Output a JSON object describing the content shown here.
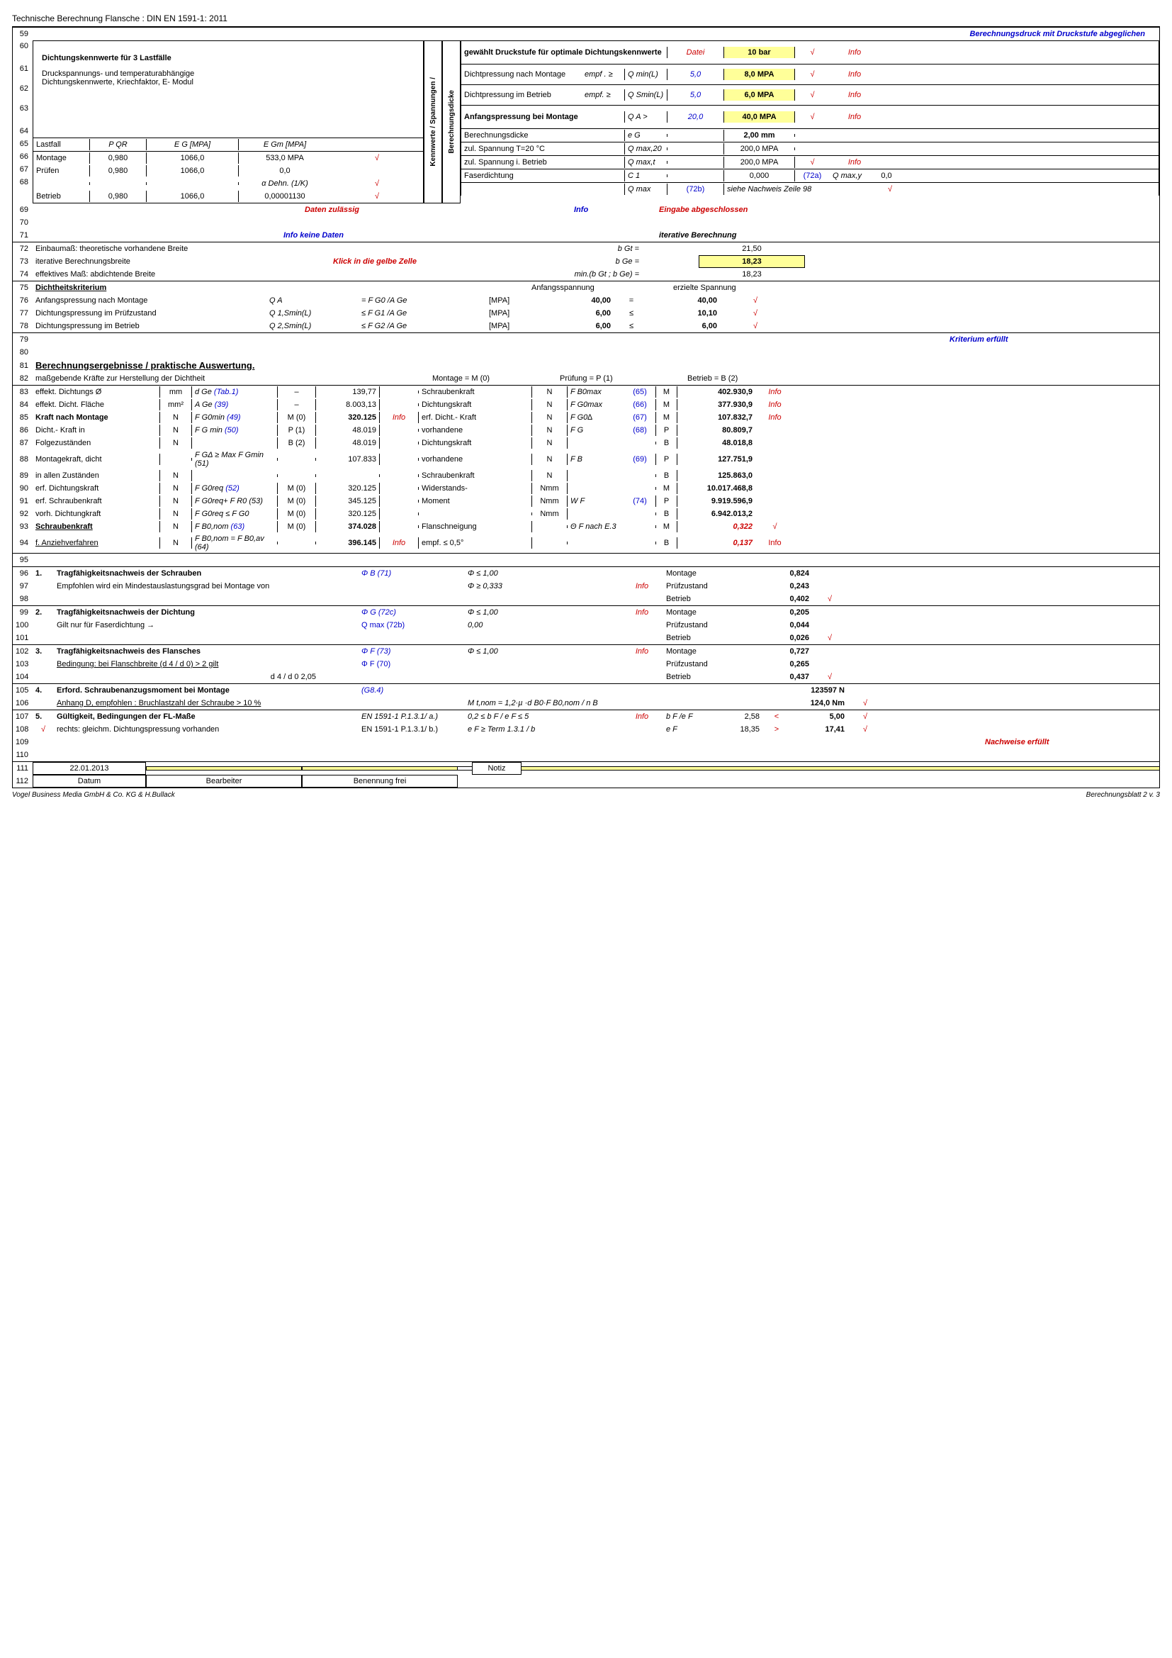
{
  "header": "Technische Berechnung Flansche : DIN EN 1591-1: 2011",
  "r59": "Berechnungsdruck mit Druckstufe abgeglichen",
  "r60": {
    "left": "gewählt Druckstufe für optimale Dichtungskennwerte",
    "datei": "Datei",
    "val": "10 bar",
    "info": "Info"
  },
  "r61": {
    "title": "Dichtungskennwerte für  3 Lastfälle",
    "a": "Dichtpressung nach Montage",
    "b": "empf . ≥",
    "c": "Q min(L)",
    "d": "5,0",
    "e": "8,0 MPA",
    "info": "Info"
  },
  "r62": {
    "sub": "Druckspannungs- und temperaturabhängige",
    "a": "Dichtpressung im Betrieb",
    "b": "empf. ≥",
    "c": "Q Smin(L)",
    "d": "5,0",
    "e": "6,0 MPA",
    "info": "Info"
  },
  "r63": {
    "sub": "Dichtungskennwerte, Kriechfaktor, E- Modul",
    "a": "Anfangspressung bei Montage",
    "c": "Q A  >",
    "d": "20,0",
    "e": "40,0 MPA",
    "info": "Info"
  },
  "vert1": "Kennwerte / Spannungen /",
  "vert2": "Berechnungsdicke",
  "r64": {
    "h1": "Lastfall",
    "h2": "P QR",
    "h3": "E G   [MPA]",
    "h4": "E Gm  [MPA]",
    "a": "Berechnungsdicke",
    "c": "e G",
    "e": "2,00 mm"
  },
  "r65": {
    "c1": "Montage",
    "c2": "0,980",
    "c3": "1066,0",
    "c4": "533,0 MPA",
    "ck": "√",
    "a": "zul. Spannung  T=20 °C",
    "c": "Q max,20",
    "e": "200,0 MPA"
  },
  "r66": {
    "c1": "Prüfen",
    "c2": "0,980",
    "c3": "1066,0",
    "c4": "0,0",
    "a": "zul. Spannung i. Betrieb",
    "c": "Q max,t",
    "e": "200,0 MPA",
    "info": "Info"
  },
  "r67": {
    "c4": "α Dehn.  (1/K)",
    "ck": "√",
    "a": "Faserdichtung",
    "c": "C 1",
    "e": "0,000",
    "f": "(72a)",
    "g": "Q max,y",
    "h": "0,0"
  },
  "r68": {
    "c1": "Betrieb",
    "c2": "0,980",
    "c3": "1066,0",
    "c4": "0,00001130",
    "ck": "√",
    "c": "Q max",
    "d": "(72b)",
    "e": "siehe Nachweis Zeile 98"
  },
  "r69": {
    "a": "Daten zulässig",
    "b": "Info",
    "c": "Eingabe abgeschlossen"
  },
  "r71": {
    "a": "Info keine Daten",
    "b": "iterative Berechnung"
  },
  "r72": {
    "a": "Einbaumaß:  theoretische vorhandene Breite",
    "b": "b Gt =",
    "c": "21,50"
  },
  "r73": {
    "a": "iterative Berechnungsbreite",
    "b": "Klick in die gelbe Zelle",
    "c": "b Ge =",
    "d": "18,23"
  },
  "r74": {
    "a": "effektives Maß: abdichtende Breite",
    "b": "min.(b Gt ; b Ge) =",
    "c": "18,23"
  },
  "r75": {
    "a": "Dichtheitskriterium",
    "b": "Anfangsspannung",
    "c": "erzielte Spannung"
  },
  "r76": {
    "a": "Anfangspressung nach Montage",
    "b": "Q A",
    "c": "=  F G0 /A Ge",
    "d": "[MPA]",
    "e": "40,00",
    "f": "=",
    "g": "40,00"
  },
  "r77": {
    "a": "Dichtungspressung im Prüfzustand",
    "b": "Q 1,Smin(L)",
    "c": "≤   F G1 /A Ge",
    "d": "[MPA]",
    "e": "6,00",
    "f": "≤",
    "g": "10,10"
  },
  "r78": {
    "a": "Dichtungspressung im Betrieb",
    "b": "Q 2,Smin(L)",
    "c": "≤   F G2 /A Ge",
    "d": "[MPA]",
    "e": "6,00",
    "f": "≤",
    "g": "6,00"
  },
  "r80": "Kriterium erfüllt",
  "r81": "Berechnungsergebnisse / praktische Auswertung.",
  "r82": {
    "a": "maßgebende Kräfte zur Herstellung der Dichtheit",
    "b": "Montage = M (0)",
    "c": "Prüfung = P (1)",
    "d": "Betrieb = B (2)"
  },
  "r83": {
    "a": "effekt. Dichtungs Ø",
    "u": "mm",
    "s": "d Ge",
    "r": "(Tab.1)",
    "m": "–",
    "v": "139,77",
    "rb": "Schraubenkraft",
    "ru": "N",
    "rs": "F B0max",
    "rr": "(65)",
    "rm": "M",
    "rv": "402.930,9",
    "ri": "Info"
  },
  "r84": {
    "a": "effekt. Dicht. Fläche",
    "u": "mm²",
    "s": "A Ge",
    "r": "(39)",
    "m": "–",
    "v": "8.003,13",
    "rb": "Dichtungskraft",
    "ru": "N",
    "rs": "F G0max",
    "rr": "(66)",
    "rm": "M",
    "rv": "377.930,9",
    "ri": "Info"
  },
  "r85": {
    "a": "Kraft nach Montage",
    "u": "N",
    "s": "F G0min",
    "r": "(49)",
    "m": "M (0)",
    "v": "320.125",
    "i": "Info",
    "rb": "erf. Dicht.- Kraft",
    "ru": "N",
    "rs": "F G0∆",
    "rr": "(67)",
    "rm": "M",
    "rv": "107.832,7",
    "ri": "Info"
  },
  "r86": {
    "a": "Dicht.- Kraft in",
    "u": "N",
    "s": "F G min",
    "r": "(50)",
    "m": "P (1)",
    "v": "48.019",
    "rb": "vorhandene",
    "ru": "N",
    "rs": "F G",
    "rr": "(68)",
    "rm": "P",
    "rv": "80.809,7"
  },
  "r87": {
    "a": "Folgezuständen",
    "u": "N",
    "m": "B (2)",
    "v": "48.019",
    "rb": "Dichtungskraft",
    "ru": "N",
    "rm": "B",
    "rv": "48.018,8"
  },
  "r88": {
    "a": "Montagekraft, dicht",
    "s": "F GΔ ≥ Max F Gmin  (51)",
    "v": "107.833",
    "rb": "vorhandene",
    "ru": "N",
    "rs": "F B",
    "rr": "(69)",
    "rm": "P",
    "rv": "127.751,9"
  },
  "r89": {
    "a": "in allen Zuständen",
    "u": "N",
    "rb": "Schraubenkraft",
    "ru": "N",
    "rm": "B",
    "rv": "125.863,0"
  },
  "r90": {
    "a": "erf. Dichtungskraft",
    "u": "N",
    "s": "F G0req",
    "r": "(52)",
    "m": "M (0)",
    "v": "320.125",
    "rb": "Widerstands-",
    "ru": "Nmm",
    "rm": "M",
    "rv": "10.017.468,8"
  },
  "r91": {
    "a": "erf. Schraubenkraft",
    "u": "N",
    "s": "F G0req+ F R0 (53)",
    "m": "M (0)",
    "v": "345.125",
    "rb": "Moment",
    "ru": "Nmm",
    "rs": "W F",
    "rr": "(74)",
    "rm": "P",
    "rv": "9.919.596,9"
  },
  "r92": {
    "a": "vorh. Dichtungkraft",
    "u": "N",
    "s": "F G0req ≤ F G0",
    "m": "M (0)",
    "v": "320.125",
    "ru": "Nmm",
    "rm": "B",
    "rv": "6.942.013,2"
  },
  "r93": {
    "a": "Schraubenkraft",
    "u": "N",
    "s": "F B0,nom",
    "r": "(63)",
    "m": "M (0)",
    "v": "374.028",
    "rb": "Flanschneigung",
    "rs": "Θ F  nach E.3",
    "rm": "M",
    "rv": "0,322"
  },
  "r94": {
    "a": "f.  Anziehverfahren",
    "u": "N",
    "s": "F B0,nom = F B0,av (64)",
    "v": "396.145",
    "i": "Info",
    "rb": "empf.  ≤  0,5°",
    "ri": "Info",
    "rm": "B",
    "rv": "0,137"
  },
  "r96": {
    "n": "1.",
    "t": "Tragfähigkeitsnachweis der Schrauben",
    "s": "Φ B   (71)",
    "c": "Φ  ≤    1,00",
    "l": "Montage",
    "v": "0,824"
  },
  "r97": {
    "t": "Empfohlen wird ein Mindestauslastungsgrad bei Montage von",
    "c": "Φ  ≥    0,333",
    "i": "Info",
    "l": "Prüfzustand",
    "v": "0,243"
  },
  "r98": {
    "l": "Betrieb",
    "v": "0,402"
  },
  "r99": {
    "n": "2.",
    "t": "Tragfähigkeitsnachweis der Dichtung",
    "s": "Φ G  (72c)",
    "c": "Φ ≤    1,00",
    "i": "Info",
    "l": "Montage",
    "v": "0,205"
  },
  "r100": {
    "t": "Gilt nur für Faserdichtung    →",
    "s": "Q max  (72b)",
    "c": "0,00",
    "l": "Prüfzustand",
    "v": "0,044"
  },
  "r101": {
    "l": "Betrieb",
    "v": "0,026"
  },
  "r102": {
    "n": "3.",
    "t": "Tragfähigkeitsnachweis des Flansches",
    "s": "Φ F   (73)",
    "c": "Φ  ≤    1,00",
    "i": "Info",
    "l": "Montage",
    "v": "0,727"
  },
  "r103": {
    "t": "Bedingung:   bei Flanschbreite  (d 4 / d 0) > 2    gilt",
    "s": "Φ F   (70)",
    "l": "Prüfzustand",
    "v": "0,265"
  },
  "r104": {
    "t": "d 4 / d 0    2,05",
    "l": "Betrieb",
    "v": "0,437"
  },
  "r105": {
    "n": "4.",
    "t": "Erford. Schraubenanzugsmoment bei Montage",
    "s": "(G8.4)",
    "v": "123597 N"
  },
  "r106": {
    "t": "Anhang D, empfohlen :    Bruchlastzahl der Schraube  > 10 %",
    "c": "M t,nom = 1,2·µ ·d B0·F B0,nom / n B",
    "v": "124,0 Nm"
  },
  "r107": {
    "n": "5.",
    "t": "Gültigkeit, Bedingungen der FL-Maße",
    "s": "EN 1591-1 P.1.3.1/ a.)",
    "c": "0,2 ≤ b F / e F ≤ 5",
    "i": "Info",
    "l": "b F /e F",
    "lv": "2,58",
    "op": "<",
    "v": "5,00"
  },
  "r108": {
    "ck": "√",
    "t": "rechts: gleichm. Dichtungspressung vorhanden",
    "s": "EN 1591-1 P.1.3.1/ b.)",
    "c": "e F ≥ Term 1.3.1 / b",
    "lv": "18,35",
    "l": "e F",
    "op": ">",
    "v": "17,41"
  },
  "r109": "Nachweise erfüllt",
  "r111": {
    "date": "22.01.2013",
    "notiz": "Notiz"
  },
  "r112": {
    "a": "Datum",
    "b": "Bearbeiter",
    "c": "Benennung frei"
  },
  "footer": {
    "a": "Vogel Business Media GmbH & Co. KG  & H.Bullack",
    "b": "Berechnungsblatt 2 v. 3"
  }
}
